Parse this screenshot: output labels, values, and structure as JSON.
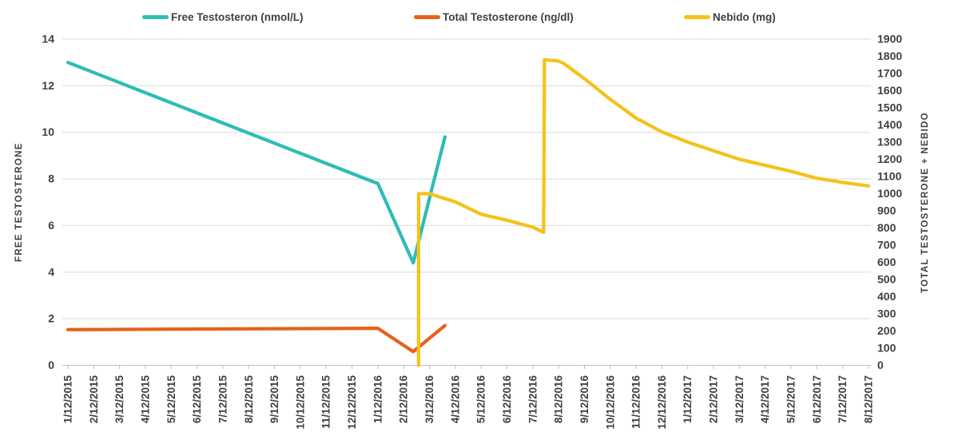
{
  "chart_data": {
    "type": "line",
    "title": "",
    "grid": "horizontal",
    "legend_position": "top",
    "left_axis": {
      "title": "FREE TESTOSTERONE",
      "min": 0,
      "max": 14,
      "step": 2,
      "ticks": [
        "0",
        "2",
        "4",
        "6",
        "8",
        "10",
        "12",
        "14"
      ]
    },
    "right_axis": {
      "title": "TOTAL TESTOSTERONE + NEBIDO",
      "min": 0,
      "max": 1900,
      "step": 100,
      "ticks": [
        "0",
        "100",
        "200",
        "300",
        "400",
        "500",
        "600",
        "700",
        "800",
        "900",
        "1000",
        "1100",
        "1200",
        "1300",
        "1400",
        "1500",
        "1600",
        "1700",
        "1800",
        "1900"
      ]
    },
    "x_categories": [
      "1/12/2015",
      "2/12/2015",
      "3/12/2015",
      "4/12/2015",
      "5/12/2015",
      "6/12/2015",
      "7/12/2015",
      "8/12/2015",
      "9/12/2015",
      "10/12/2015",
      "11/12/2015",
      "12/12/2015",
      "1/12/2016",
      "2/12/2016",
      "3/12/2016",
      "4/12/2016",
      "5/12/2016",
      "6/12/2016",
      "7/12/2016",
      "8/12/2016",
      "9/12/2016",
      "10/12/2016",
      "11/12/2016",
      "12/12/2016",
      "1/12/2017",
      "2/12/2017",
      "3/12/2017",
      "4/12/2017",
      "5/12/2017",
      "6/12/2017",
      "7/12/2017",
      "8/12/2017"
    ],
    "series": [
      {
        "name": "Free Testosteron (nmol/L)",
        "axis": "left",
        "color": "#2FBCB5",
        "points": [
          [
            0,
            13.0
          ],
          [
            12,
            7.8
          ],
          [
            13.37,
            4.4
          ],
          [
            14.6,
            9.8
          ]
        ]
      },
      {
        "name": "Total Testosterone (ng/dl)",
        "axis": "right",
        "color": "#E6621C",
        "points": [
          [
            0,
            208
          ],
          [
            12,
            216
          ],
          [
            13.37,
            80
          ],
          [
            14.6,
            232
          ]
        ]
      },
      {
        "name": "Nebido (mg)",
        "axis": "right",
        "color": "#F4C31A",
        "points": [
          [
            13.58,
            0
          ],
          [
            13.58,
            1000
          ],
          [
            14,
            1000
          ],
          [
            15,
            952
          ],
          [
            16,
            880
          ],
          [
            17,
            845
          ],
          [
            18,
            805
          ],
          [
            18.42,
            775
          ],
          [
            18.45,
            1780
          ],
          [
            19,
            1772
          ],
          [
            19.2,
            1758
          ],
          [
            20,
            1670
          ],
          [
            21,
            1550
          ],
          [
            22,
            1440
          ],
          [
            23,
            1360
          ],
          [
            24,
            1300
          ],
          [
            25,
            1250
          ],
          [
            26,
            1200
          ],
          [
            27,
            1165
          ],
          [
            28,
            1130
          ],
          [
            29,
            1090
          ],
          [
            30,
            1065
          ],
          [
            31,
            1045
          ]
        ]
      }
    ],
    "colors": {
      "gridline": "#D9D9D9",
      "axis_line": "#BFBFBF",
      "text": "#404040"
    }
  }
}
